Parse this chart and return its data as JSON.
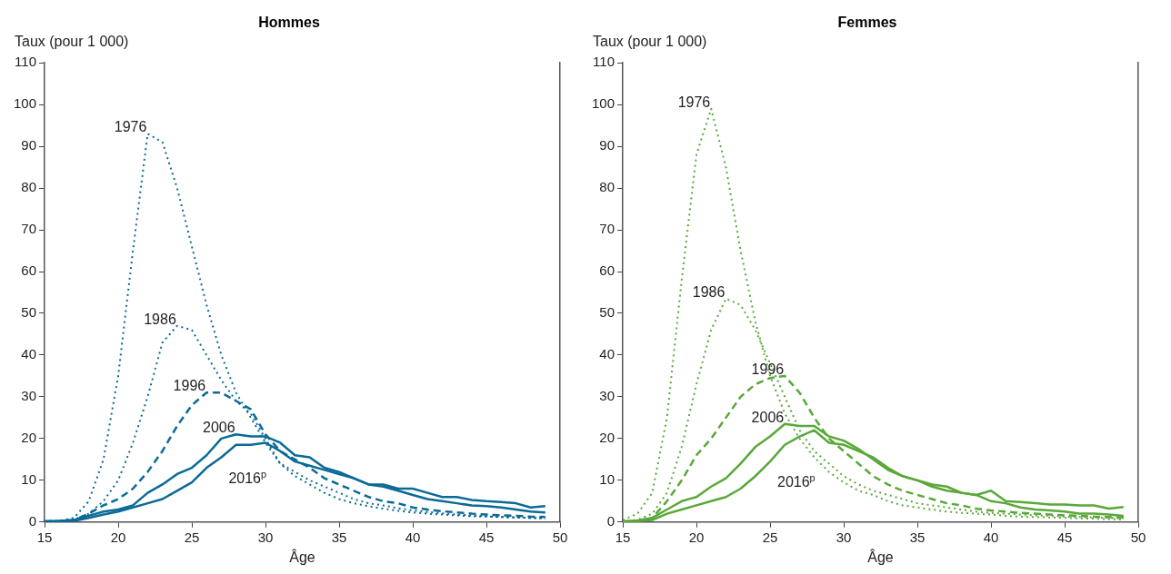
{
  "chart_data": [
    {
      "type": "line",
      "title": "Hommes",
      "xlabel": "Âge",
      "ylabel": "Taux (pour 1 000)",
      "x": [
        15,
        16,
        17,
        18,
        19,
        20,
        21,
        22,
        23,
        24,
        25,
        26,
        27,
        28,
        29,
        30,
        31,
        32,
        33,
        34,
        35,
        36,
        37,
        38,
        39,
        40,
        41,
        42,
        43,
        44,
        45,
        46,
        47,
        48,
        49
      ],
      "xlim": [
        15,
        50
      ],
      "xticks": [
        15,
        20,
        25,
        30,
        35,
        40,
        45,
        50
      ],
      "ylim": [
        0,
        110
      ],
      "yticks": [
        0,
        10,
        20,
        30,
        40,
        50,
        60,
        70,
        80,
        90,
        100,
        110
      ],
      "grid": false,
      "legend": false,
      "marker": "none",
      "series": [
        {
          "name": "1976",
          "color": "#0b6a96",
          "line_style": "dotted",
          "values": [
            0.2,
            0.3,
            1,
            5,
            15,
            35,
            65,
            93,
            91,
            80,
            66,
            52,
            40,
            31,
            25,
            19,
            14,
            11,
            9,
            7,
            5.5,
            4.5,
            3.8,
            3.2,
            2.7,
            2.3,
            2,
            1.8,
            1.6,
            1.4,
            1.3,
            1.2,
            1.1,
            1,
            0.9
          ]
        },
        {
          "name": "1986",
          "color": "#0b6a96",
          "line_style": "dotted",
          "values": [
            0.1,
            0.2,
            0.6,
            2,
            5,
            10,
            19,
            30,
            43,
            47,
            46,
            40,
            34,
            29,
            26,
            20,
            14,
            12,
            10,
            8.5,
            7,
            5.5,
            4.5,
            4,
            3.3,
            2.8,
            2.4,
            2.1,
            1.8,
            1.6,
            1.4,
            1.2,
            1.1,
            1,
            0.9
          ]
        },
        {
          "name": "1996",
          "color": "#0b6a96",
          "line_style": "dashed",
          "values": [
            0.1,
            0.2,
            0.5,
            2,
            4,
            5.5,
            8,
            12,
            17,
            23,
            28,
            31,
            31,
            29,
            27,
            21,
            17,
            15,
            13,
            10.5,
            9,
            7.5,
            6,
            5,
            4.5,
            3.5,
            3,
            2.6,
            2.3,
            2,
            1.8,
            1.6,
            1.5,
            1.3,
            1.2
          ]
        },
        {
          "name": "2006",
          "color": "#0b6a96",
          "line_style": "solid",
          "values": [
            0.2,
            0.3,
            0.5,
            1.5,
            2.5,
            3,
            4,
            7,
            9,
            11.5,
            13,
            16,
            20,
            21,
            20.5,
            20.5,
            19,
            16,
            15.5,
            13,
            12,
            10.5,
            9,
            9,
            8,
            8,
            7,
            6,
            6,
            5.3,
            5,
            4.8,
            4.5,
            3.5,
            3.8
          ]
        },
        {
          "name": "2016$^{p}$",
          "color": "#0b6a96",
          "line_style": "solid",
          "values": [
            0.2,
            0.2,
            0.3,
            1,
            1.8,
            2.5,
            3.5,
            4.5,
            5.5,
            7.5,
            9.5,
            13,
            15.5,
            18.5,
            18.5,
            19,
            17,
            14.5,
            13.5,
            12.5,
            11.5,
            10.5,
            9,
            8.5,
            7.5,
            6.5,
            5.5,
            5,
            4.5,
            4,
            3.8,
            3.5,
            3,
            2.5,
            2.3
          ]
        }
      ]
    },
    {
      "type": "line",
      "title": "Femmes",
      "xlabel": "Âge",
      "ylabel": "Taux (pour 1 000)",
      "x": [
        15,
        16,
        17,
        18,
        19,
        20,
        21,
        22,
        23,
        24,
        25,
        26,
        27,
        28,
        29,
        30,
        31,
        32,
        33,
        34,
        35,
        36,
        37,
        38,
        39,
        40,
        41,
        42,
        43,
        44,
        45,
        46,
        47,
        48,
        49
      ],
      "xlim": [
        15,
        50
      ],
      "xticks": [
        15,
        20,
        25,
        30,
        35,
        40,
        45,
        50
      ],
      "ylim": [
        0,
        110
      ],
      "yticks": [
        0,
        10,
        20,
        30,
        40,
        50,
        60,
        70,
        80,
        90,
        100,
        110
      ],
      "grid": false,
      "legend": false,
      "marker": "none",
      "series": [
        {
          "name": "1976",
          "color": "#5aa83a",
          "line_style": "dotted",
          "values": [
            0.5,
            2,
            7,
            25,
            58,
            88,
            99,
            85,
            65,
            48,
            35,
            26,
            20,
            15.5,
            12,
            9.5,
            7.5,
            6.5,
            5,
            4,
            3.5,
            3,
            2.5,
            2.2,
            2,
            1.8,
            1.5,
            1.3,
            1.2,
            1.1,
            1,
            0.9,
            0.8,
            0.7,
            0.6
          ]
        },
        {
          "name": "1986",
          "color": "#5aa83a",
          "line_style": "dotted",
          "values": [
            0.2,
            0.5,
            2,
            7,
            18,
            33,
            46,
            53.5,
            52,
            46,
            38,
            30,
            22,
            17,
            14,
            11,
            9,
            7.5,
            6.5,
            5.5,
            4.5,
            4,
            3.5,
            3,
            2.5,
            2.2,
            2,
            1.8,
            1.6,
            1.5,
            1.3,
            1.2,
            1.1,
            1,
            0.9
          ]
        },
        {
          "name": "1996",
          "color": "#5aa83a",
          "line_style": "dashed",
          "values": [
            0.1,
            0.2,
            1,
            5,
            10,
            16,
            20,
            25,
            30,
            33,
            34.5,
            35,
            31,
            25,
            20,
            17,
            14,
            11,
            9,
            7.5,
            6.5,
            5.5,
            4.5,
            4,
            3.2,
            2.8,
            2.5,
            2.2,
            2,
            1.8,
            1.6,
            1.5,
            1.3,
            1.2,
            1.1
          ]
        },
        {
          "name": "2006",
          "color": "#5aa83a",
          "line_style": "solid",
          "values": [
            0.2,
            0.4,
            1,
            3,
            5,
            6,
            8.5,
            10.5,
            14,
            18,
            20.5,
            23.5,
            23,
            23,
            20.5,
            19.5,
            17.5,
            15,
            12.5,
            11,
            10,
            9,
            8.5,
            7,
            6.5,
            7.5,
            5,
            4.8,
            4.5,
            4.2,
            4.2,
            4,
            4,
            3.2,
            3.6
          ]
        },
        {
          "name": "2016$^{p}$",
          "color": "#5aa83a",
          "line_style": "solid",
          "values": [
            0.1,
            0.2,
            0.5,
            2,
            3,
            4,
            5,
            6,
            8,
            11,
            14.5,
            18.5,
            20.5,
            22,
            19,
            18.5,
            17,
            15.5,
            13,
            11,
            10,
            8.5,
            7.5,
            7,
            6.5,
            5,
            4.5,
            3.5,
            3,
            2.8,
            2.5,
            2,
            2,
            1.8,
            1.5
          ]
        }
      ]
    }
  ]
}
